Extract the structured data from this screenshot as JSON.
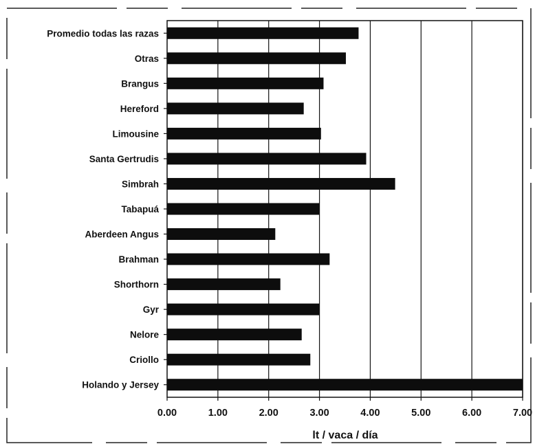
{
  "chart_data": {
    "type": "bar",
    "orientation": "horizontal",
    "categories": [
      "Promedio todas las razas",
      "Otras",
      "Brangus",
      "Hereford",
      "Limousine",
      "Santa Gertrudis",
      "Simbrah",
      "Tabapuá",
      "Aberdeen Angus",
      "Brahman",
      "Shorthorn",
      "Gyr",
      "Nelore",
      "Criollo",
      "Holando y Jersey"
    ],
    "values": [
      3.77,
      3.52,
      3.08,
      2.69,
      3.03,
      3.92,
      4.49,
      3.0,
      2.13,
      3.2,
      2.23,
      3.0,
      2.65,
      2.82,
      7.0
    ],
    "xlabel": "lt / vaca / día",
    "ylabel": "",
    "xlim": [
      0,
      7
    ],
    "xticks": [
      "0.00",
      "1.00",
      "2.00",
      "3.00",
      "4.00",
      "5.00",
      "6.00",
      "7.00"
    ],
    "grid": "vertical",
    "legend": "none",
    "bar_color": "#0d0d0d"
  }
}
